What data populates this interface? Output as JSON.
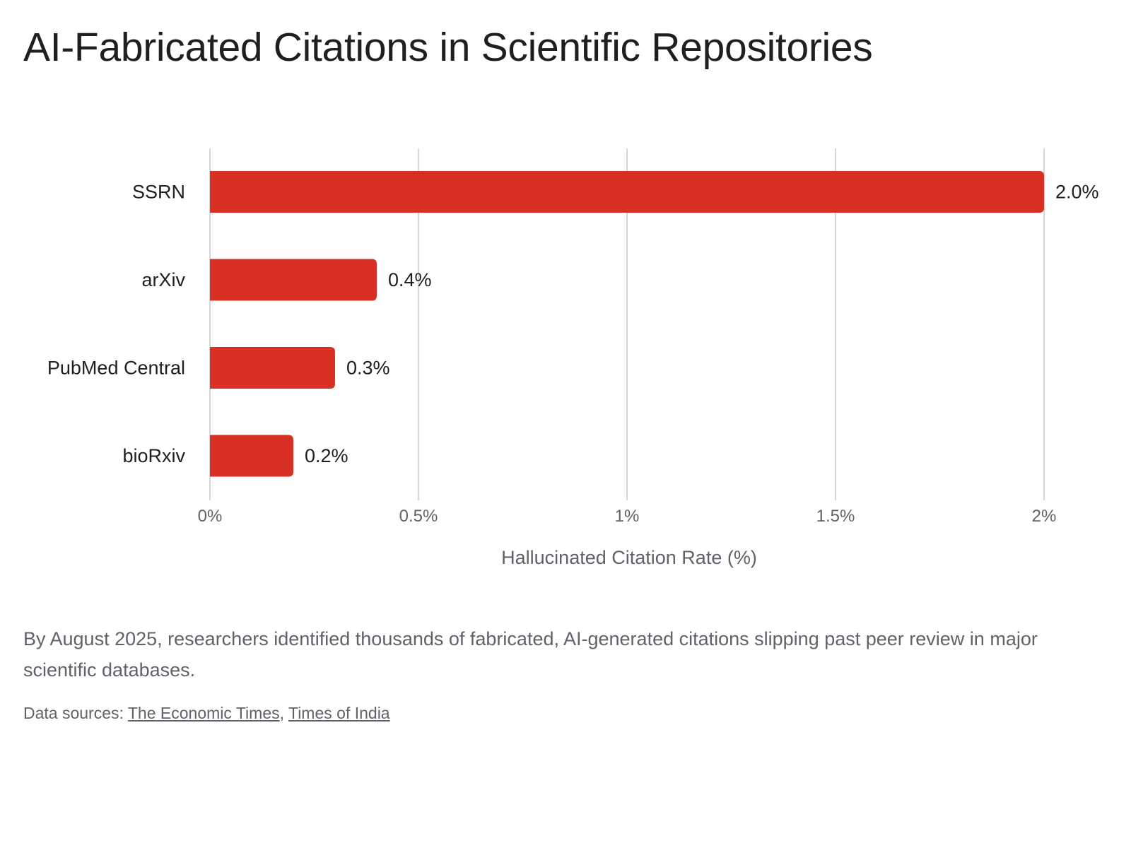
{
  "colors": {
    "bar": "#d93025",
    "grid": "#c7c7c7",
    "axis_text": "#5f6368",
    "label_text": "#1f1f1f"
  },
  "caption": "By August 2025, researchers identified thousands of fabricated, AI-generated citations slipping past peer review in major scientific databases.",
  "sources": {
    "prefix": "Data sources: ",
    "separator": ", ",
    "links": [
      "The Economic Times",
      "Times of India"
    ]
  },
  "chart_data": {
    "type": "bar",
    "orientation": "horizontal",
    "title": "AI-Fabricated Citations in Scientific Repositories",
    "xlabel": "Hallucinated Citation Rate (%)",
    "ylabel": "",
    "categories": [
      "SSRN",
      "arXiv",
      "PubMed Central",
      "bioRxiv"
    ],
    "values": [
      2.0,
      0.4,
      0.3,
      0.2
    ],
    "data_labels": [
      "2.0%",
      "0.4%",
      "0.3%",
      "0.2%"
    ],
    "xlim": [
      0,
      2
    ],
    "x_ticks": [
      0,
      0.5,
      1,
      1.5,
      2
    ],
    "x_tick_labels": [
      "0%",
      "0.5%",
      "1%",
      "1.5%",
      "2%"
    ],
    "grid": "vertical",
    "legend": "none"
  }
}
